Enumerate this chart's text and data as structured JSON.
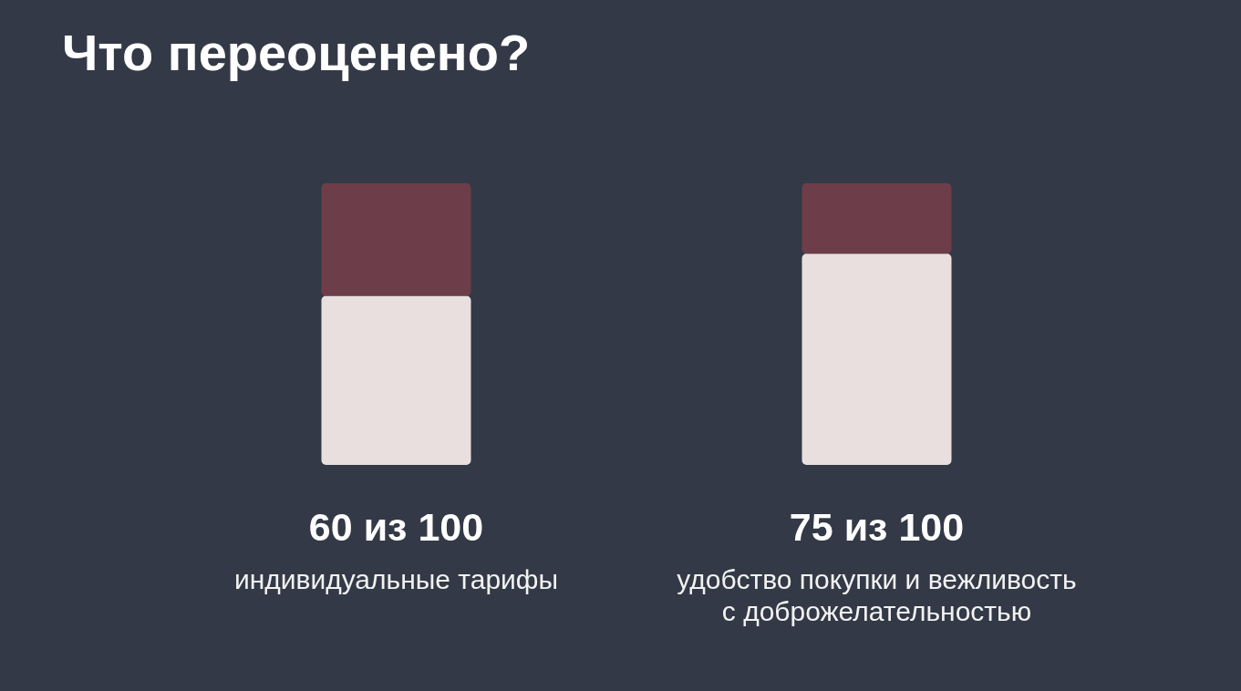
{
  "chart_data": {
    "type": "bar",
    "title": "Что переоценено?",
    "categories": [
      "индивидуальные тарифы",
      "удобство покупки и вежливость с доброжелательностью"
    ],
    "series": [
      {
        "color": "#e9dfdf",
        "values": [
          60,
          75
        ],
        "value_labels": [
          "60 из 100",
          "75 из 100"
        ]
      },
      {
        "color": "#6d3e4a",
        "values": [
          40,
          25
        ]
      }
    ],
    "stacked": true,
    "ylim": [
      0,
      100
    ],
    "tick_labels": "x"
  }
}
